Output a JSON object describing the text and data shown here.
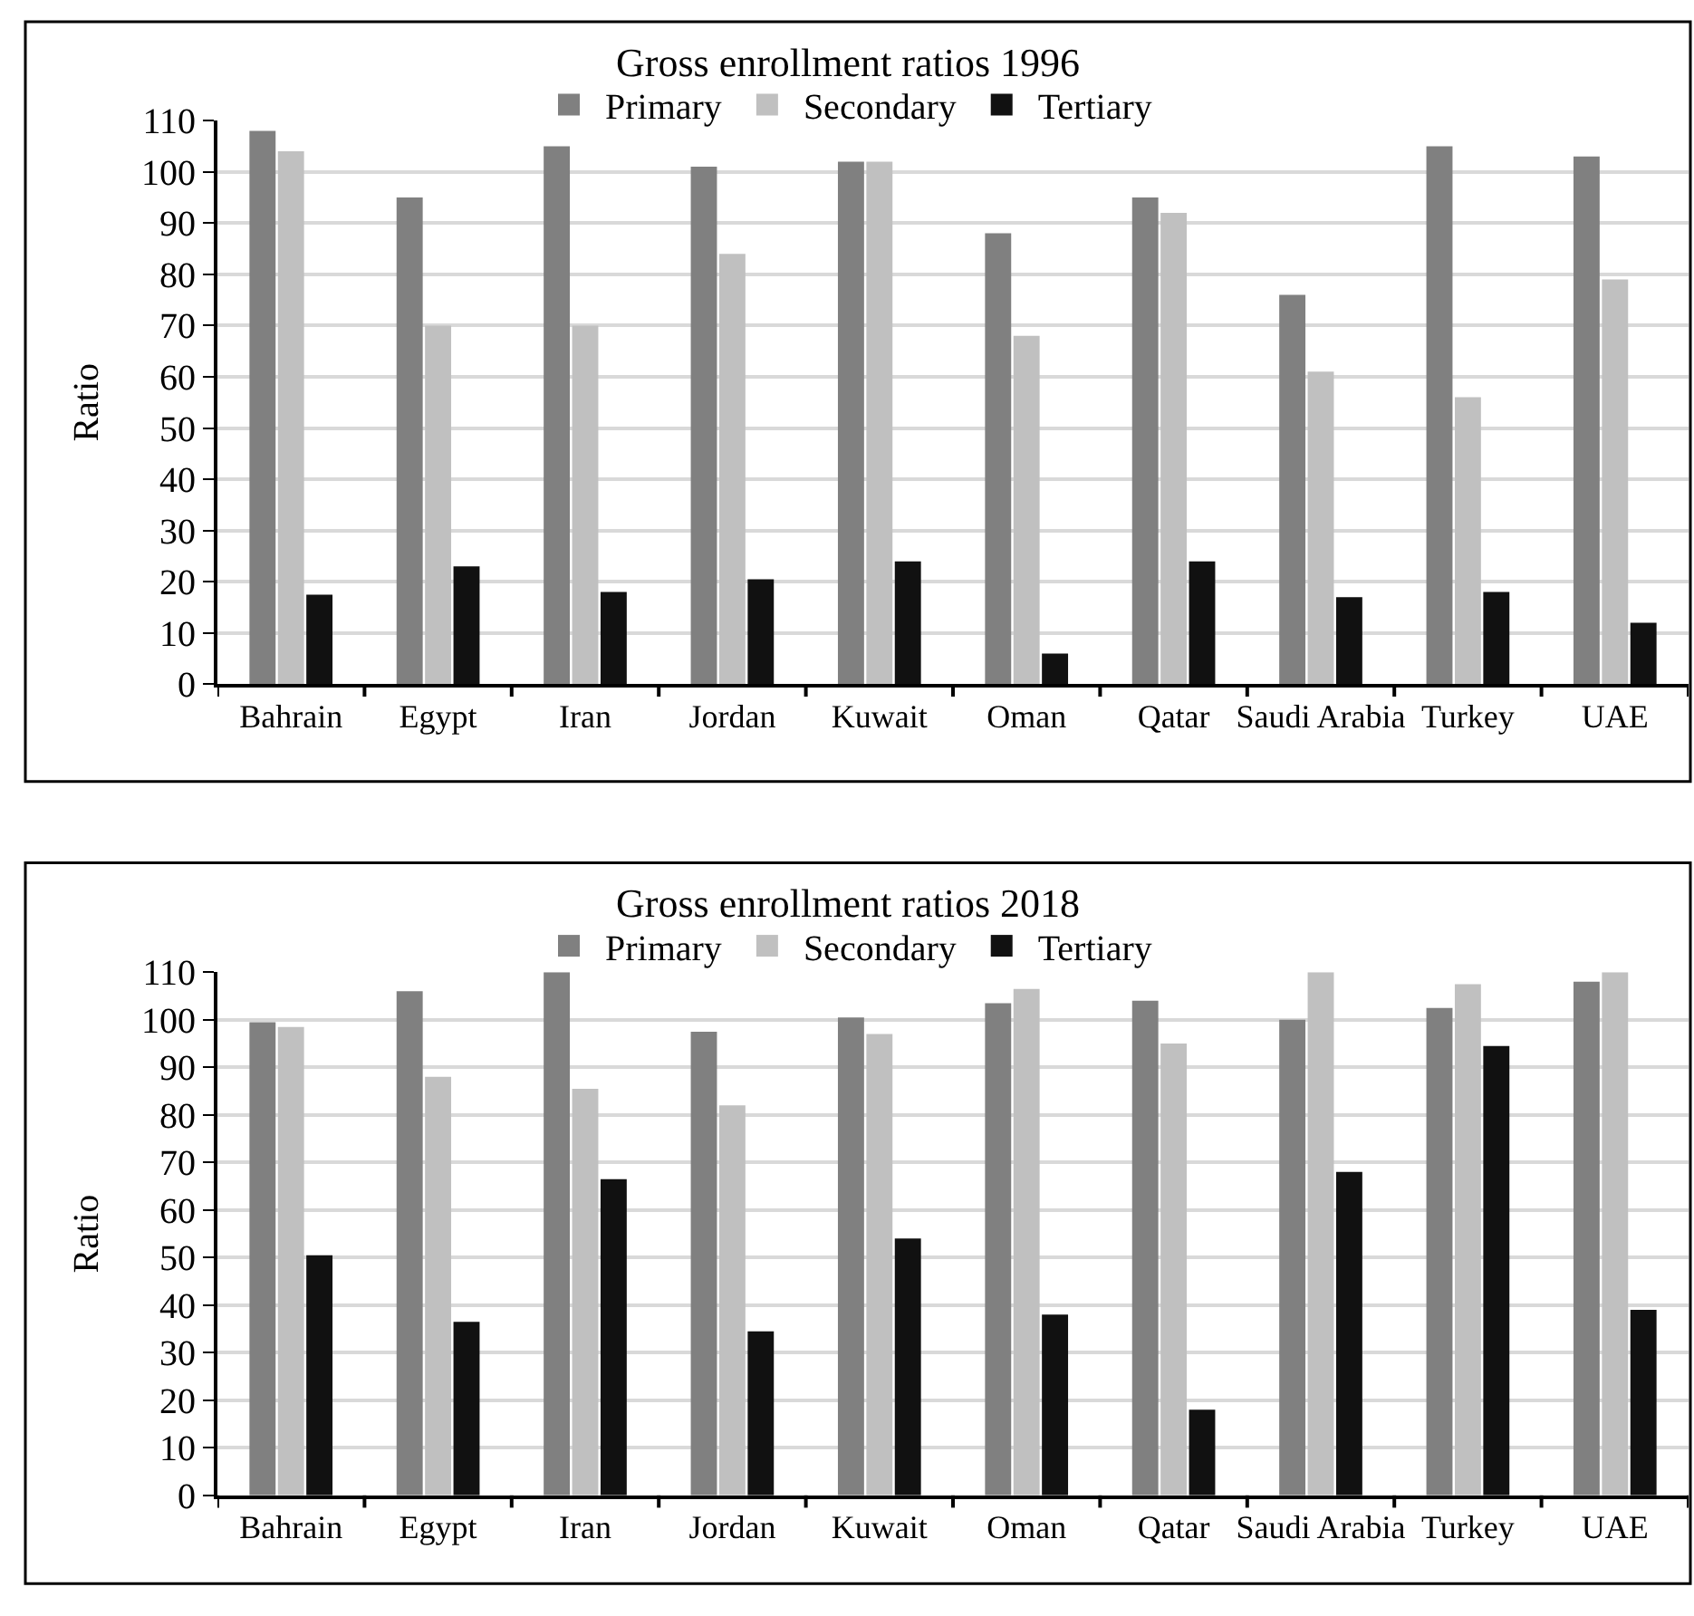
{
  "chart_data": [
    {
      "type": "bar",
      "title": "Gross enrollment ratios 1996",
      "ylabel": "Ratio",
      "categories": [
        "Bahrain",
        "Egypt",
        "Iran",
        "Jordan",
        "Kuwait",
        "Oman",
        "Qatar",
        "Saudi Arabia",
        "Turkey",
        "UAE"
      ],
      "series": [
        {
          "name": "Primary",
          "color": "#808080",
          "values": [
            108,
            95,
            105,
            101,
            102,
            88,
            95,
            76,
            105,
            103
          ]
        },
        {
          "name": "Secondary",
          "color": "#c0c0c0",
          "values": [
            104,
            70,
            70,
            84,
            102,
            68,
            92,
            61,
            56,
            79
          ]
        },
        {
          "name": "Tertiary",
          "color": "#111111",
          "values": [
            17.5,
            23,
            18,
            20.5,
            24,
            6,
            24,
            17,
            18,
            12
          ]
        }
      ],
      "ylim": [
        0,
        110
      ],
      "yticks": [
        0,
        10,
        20,
        30,
        40,
        50,
        60,
        70,
        80,
        90,
        100,
        110
      ],
      "grid": "y",
      "legend": "top"
    },
    {
      "type": "bar",
      "title": "Gross enrollment ratios 2018",
      "ylabel": "Ratio",
      "categories": [
        "Bahrain",
        "Egypt",
        "Iran",
        "Jordan",
        "Kuwait",
        "Oman",
        "Qatar",
        "Saudi Arabia",
        "Turkey",
        "UAE"
      ],
      "series": [
        {
          "name": "Primary",
          "color": "#808080",
          "values": [
            99.5,
            106,
            110,
            97.5,
            100.5,
            103.5,
            104,
            100,
            102.5,
            108
          ]
        },
        {
          "name": "Secondary",
          "color": "#c0c0c0",
          "values": [
            98.5,
            88,
            85.5,
            82,
            97,
            106.5,
            95,
            110,
            107.5,
            110
          ]
        },
        {
          "name": "Tertiary",
          "color": "#111111",
          "values": [
            50.5,
            36.5,
            66.5,
            34.5,
            54,
            38,
            18,
            68,
            94.5,
            39
          ]
        }
      ],
      "ylim": [
        0,
        110
      ],
      "yticks": [
        0,
        10,
        20,
        30,
        40,
        50,
        60,
        70,
        80,
        90,
        100,
        110
      ],
      "grid": "y",
      "legend": "top"
    }
  ]
}
